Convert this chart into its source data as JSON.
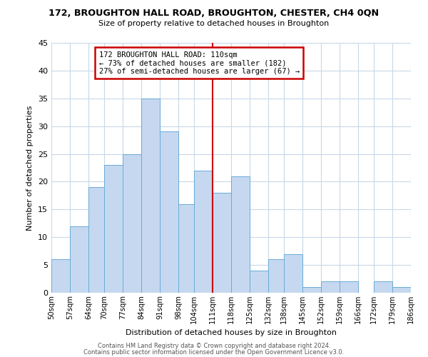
{
  "title1": "172, BROUGHTON HALL ROAD, BROUGHTON, CHESTER, CH4 0QN",
  "title2": "Size of property relative to detached houses in Broughton",
  "xlabel": "Distribution of detached houses by size in Broughton",
  "ylabel": "Number of detached properties",
  "bar_edges": [
    50,
    57,
    64,
    70,
    77,
    84,
    91,
    98,
    104,
    111,
    118,
    125,
    132,
    138,
    145,
    152,
    159,
    166,
    172,
    179,
    186
  ],
  "bar_heights": [
    6,
    12,
    19,
    23,
    25,
    35,
    29,
    16,
    22,
    18,
    21,
    4,
    6,
    7,
    1,
    2,
    2,
    0,
    2,
    1
  ],
  "bar_color": "#c5d8f0",
  "bar_edgecolor": "#6aacd8",
  "reference_line_x": 111,
  "reference_line_color": "#cc0000",
  "ylim": [
    0,
    45
  ],
  "yticks": [
    0,
    5,
    10,
    15,
    20,
    25,
    30,
    35,
    40,
    45
  ],
  "annotation_title": "172 BROUGHTON HALL ROAD: 110sqm",
  "annotation_line1": "← 73% of detached houses are smaller (182)",
  "annotation_line2": "27% of semi-detached houses are larger (67) →",
  "annotation_box_color": "#ffffff",
  "annotation_box_edgecolor": "#cc0000",
  "footer1": "Contains HM Land Registry data © Crown copyright and database right 2024.",
  "footer2": "Contains public sector information licensed under the Open Government Licence v3.0.",
  "background_color": "#ffffff",
  "grid_color": "#c8d8e8",
  "tick_labels": [
    "50sqm",
    "57sqm",
    "64sqm",
    "70sqm",
    "77sqm",
    "84sqm",
    "91sqm",
    "98sqm",
    "104sqm",
    "111sqm",
    "118sqm",
    "125sqm",
    "132sqm",
    "138sqm",
    "145sqm",
    "152sqm",
    "159sqm",
    "166sqm",
    "172sqm",
    "179sqm",
    "186sqm"
  ]
}
